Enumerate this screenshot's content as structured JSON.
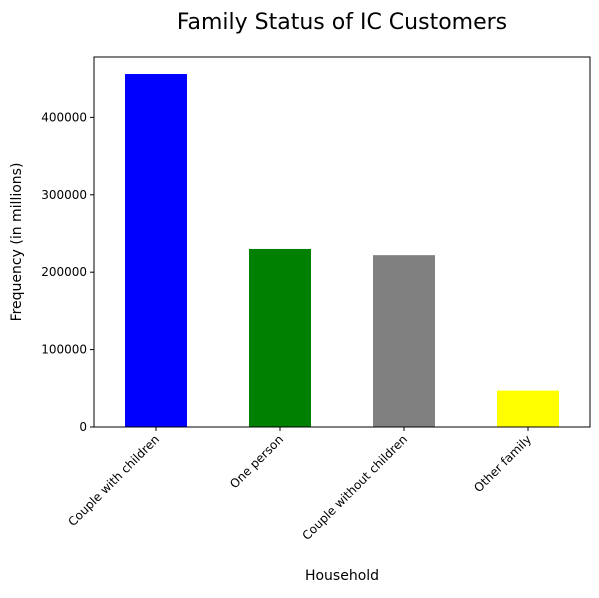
{
  "chart_data": {
    "type": "bar",
    "title": "Family Status of IC Customers",
    "xlabel": "Household",
    "ylabel": "Frequency (in millions)",
    "categories": [
      "Couple with children",
      "One person",
      "Couple without children",
      "Other family"
    ],
    "values": [
      456000,
      230000,
      222000,
      47000
    ],
    "colors": [
      "#0000ff",
      "#008000",
      "#808080",
      "#ffff00"
    ],
    "ylim": [
      0,
      478000
    ],
    "yticks": [
      0,
      100000,
      200000,
      300000,
      400000
    ],
    "ytick_labels": [
      "0",
      "100000",
      "200000",
      "300000",
      "400000"
    ],
    "grid": false,
    "legend": "none"
  }
}
